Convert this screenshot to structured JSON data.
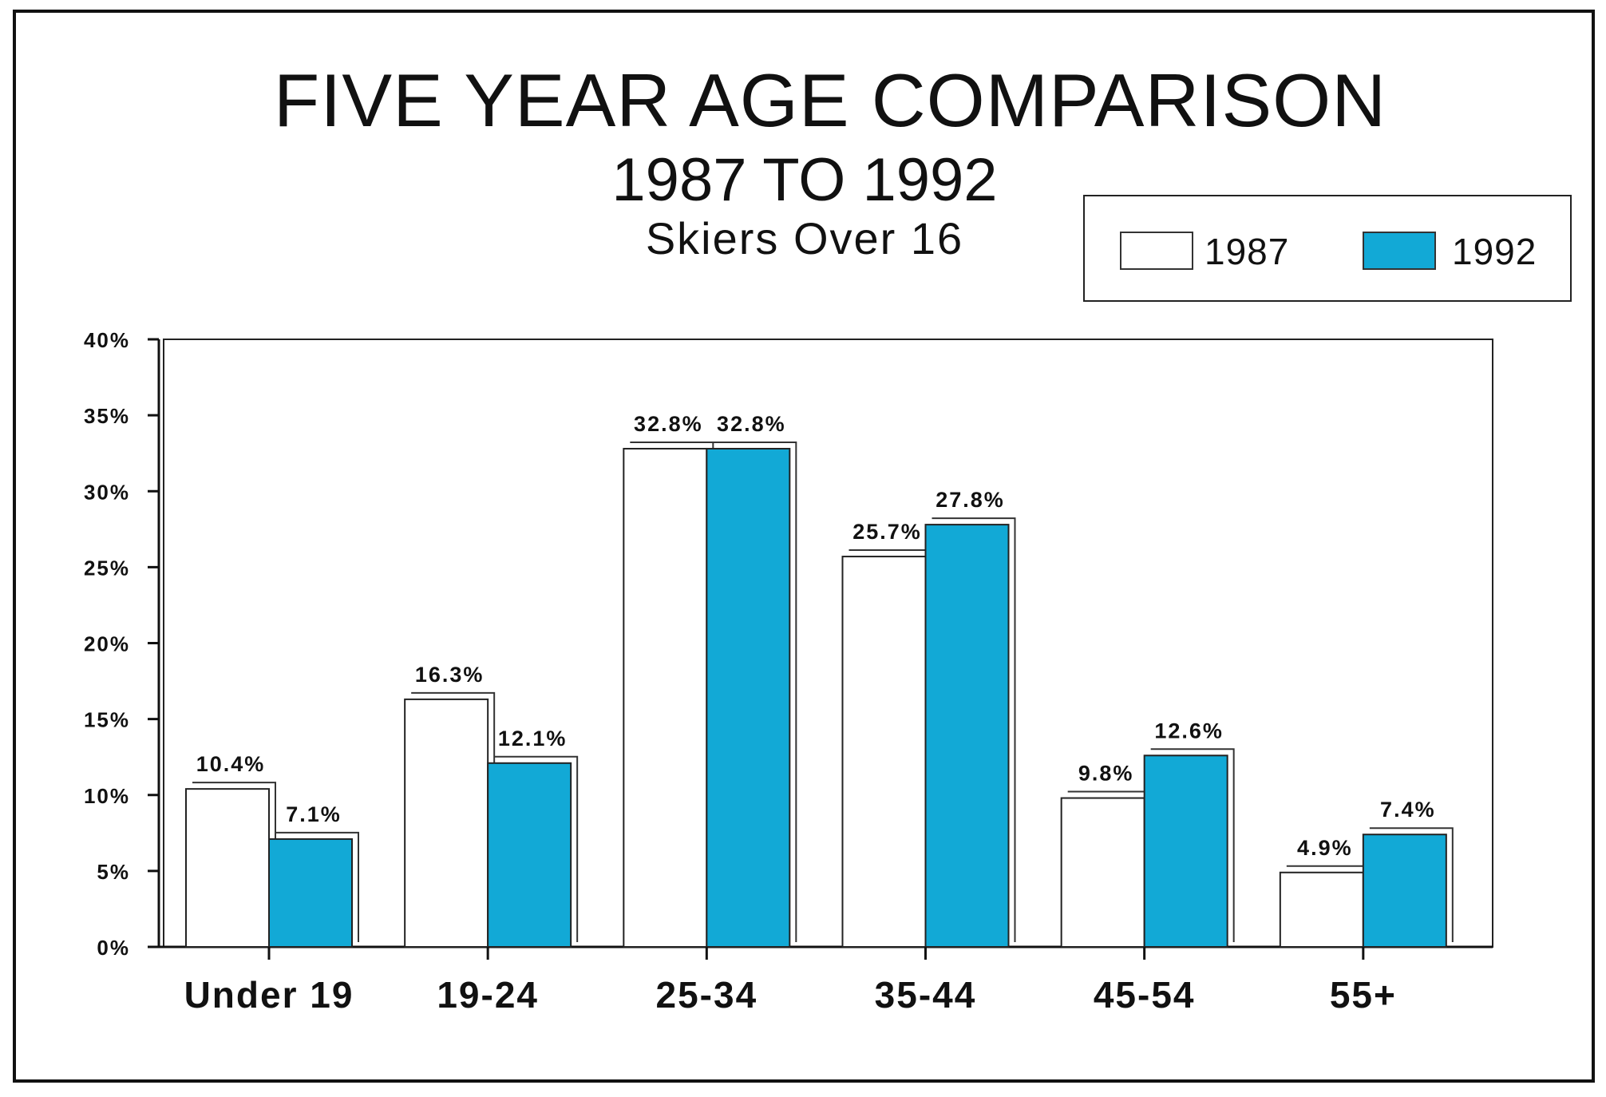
{
  "chart_data": {
    "type": "bar",
    "title": "FIVE YEAR AGE COMPARISON",
    "subtitle": "1987 TO 1992",
    "subtitle2": "Skiers Over 16",
    "categories": [
      "Under 19",
      "19-24",
      "25-34",
      "35-44",
      "45-54",
      "55+"
    ],
    "series": [
      {
        "name": "1987",
        "values": [
          10.4,
          16.3,
          32.8,
          25.7,
          9.8,
          4.9
        ],
        "labels": [
          "10.4%",
          "16.3%",
          "32.8%",
          "25.7%",
          "9.8%",
          "4.9%"
        ],
        "color": "#ffffff"
      },
      {
        "name": "1992",
        "values": [
          7.1,
          12.1,
          32.8,
          27.8,
          12.6,
          7.4
        ],
        "labels": [
          "7.1%",
          "12.1%",
          "32.8%",
          "27.8%",
          "12.6%",
          "7.4%"
        ],
        "color": "#12a9d6"
      }
    ],
    "ylim": [
      0,
      40
    ],
    "yticks": [
      "0%",
      "5%",
      "10%",
      "15%",
      "20%",
      "25%",
      "30%",
      "35%",
      "40%"
    ],
    "ytick_values": [
      0,
      5,
      10,
      15,
      20,
      25,
      30,
      35,
      40
    ],
    "xlabel": "",
    "ylabel": "",
    "grid": false,
    "legend_position": "top-right"
  },
  "colors": {
    "bar_1992": "#12a9d6",
    "bar_1987": "#ffffff",
    "ink": "#111111"
  }
}
